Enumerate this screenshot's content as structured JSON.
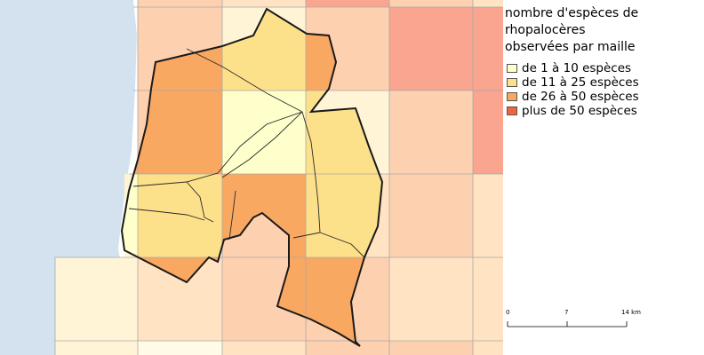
{
  "legend": {
    "title": "nombre d'espèces de\nrhopalocères\nobservées par maille",
    "items": [
      {
        "label": "de 1 à 10 espèces",
        "color": "#ffffcc"
      },
      {
        "label": "de 11 à 25 espèces",
        "color": "#fde08a"
      },
      {
        "label": "de 26 à 50 espèces",
        "color": "#f9a861"
      },
      {
        "label": "plus de 50 espèces",
        "color": "#f0653d"
      }
    ]
  },
  "scalebar": {
    "labels": [
      "0",
      "7",
      "14 km"
    ]
  },
  "colors": {
    "sea": "#d3e2ee",
    "faded_class1": "#fff4d6",
    "faded_class2": "#ffe3c2",
    "faded_class3": "#fdd0b0",
    "faded_class4": "#f9a58f",
    "grid_line": "#a9a9a9",
    "boundary": "#1a1a1a"
  }
}
